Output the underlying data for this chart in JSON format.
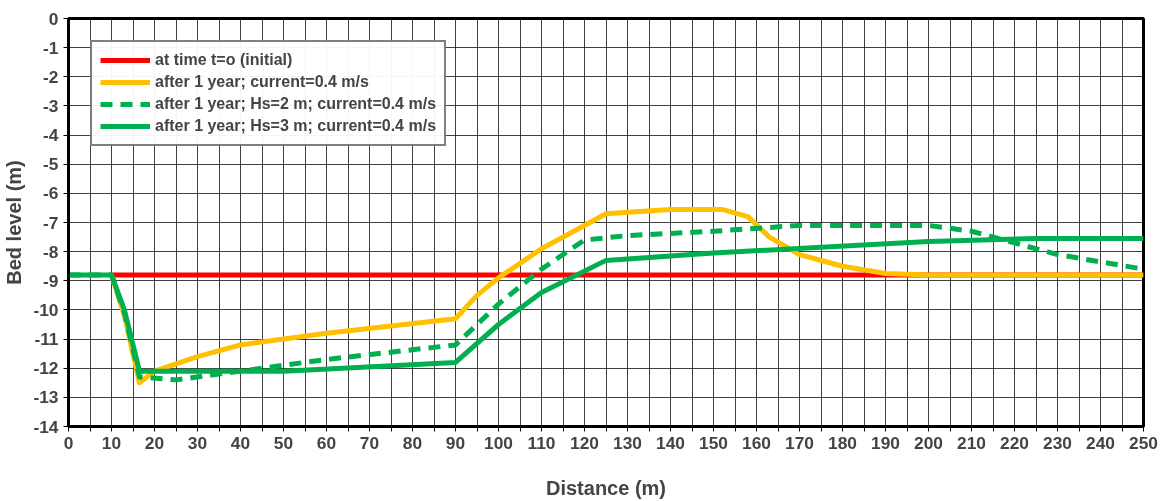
{
  "chart_data": {
    "type": "line",
    "xlabel": "Distance (m)",
    "ylabel": "Bed level (m)",
    "series": [
      {
        "name": "at time t=o (initial)",
        "color": "#ff0000",
        "line_style": "solid",
        "x": [
          10,
          250
        ],
        "values": [
          -8.8,
          -8.8
        ]
      },
      {
        "name": "after 1 year; current=0.4 m/s",
        "color": "#ffc000",
        "line_style": "solid",
        "x": [
          10,
          13,
          16.5,
          20,
          30,
          40,
          60,
          90,
          95,
          100,
          110,
          125,
          140,
          152,
          158,
          163,
          170,
          180,
          190,
          200,
          250
        ],
        "values": [
          -8.8,
          -10.2,
          -12.5,
          -12.1,
          -11.6,
          -11.2,
          -10.8,
          -10.3,
          -9.5,
          -8.9,
          -7.9,
          -6.7,
          -6.55,
          -6.55,
          -6.8,
          -7.5,
          -8.1,
          -8.5,
          -8.75,
          -8.8,
          -8.8
        ]
      },
      {
        "name": "after 1 year; Hs=2 m; current=0.4 m/s",
        "color": "#00b050",
        "line_style": "dashed",
        "x": [
          0,
          10,
          13,
          16.5,
          25,
          40,
          60,
          90,
          100,
          110,
          120,
          130,
          150,
          170,
          200,
          210,
          220,
          230,
          250
        ],
        "values": [
          -8.8,
          -8.8,
          -10.1,
          -12.3,
          -12.4,
          -12.1,
          -11.7,
          -11.2,
          -9.8,
          -8.6,
          -7.6,
          -7.45,
          -7.3,
          -7.1,
          -7.1,
          -7.3,
          -7.7,
          -8.1,
          -8.6
        ]
      },
      {
        "name": "after 1 year; Hs=3 m; current=0.4 m/s",
        "color": "#00b050",
        "line_style": "solid",
        "x": [
          0,
          10,
          13,
          16.5,
          20,
          50,
          90,
          100,
          110,
          125,
          150,
          175,
          200,
          225,
          250
        ],
        "values": [
          -8.8,
          -8.8,
          -10.0,
          -12.1,
          -12.1,
          -12.1,
          -11.8,
          -10.5,
          -9.4,
          -8.3,
          -8.05,
          -7.85,
          -7.65,
          -7.55,
          -7.55
        ]
      }
    ],
    "xlim": [
      0,
      250
    ],
    "ylim": [
      -14,
      0
    ],
    "xticks": [
      0,
      {
        "value": 5,
        "label": null
      },
      10,
      {
        "value": 15,
        "label": null
      },
      20,
      {
        "value": 25,
        "label": null
      },
      30,
      {
        "value": 35,
        "label": null
      },
      40,
      {
        "value": 45,
        "label": null
      },
      50,
      {
        "value": 55,
        "label": null
      },
      60,
      {
        "value": 65,
        "label": null
      },
      70,
      {
        "value": 75,
        "label": null
      },
      80,
      {
        "value": 85,
        "label": null
      },
      90,
      {
        "value": 95,
        "label": null
      },
      100,
      {
        "value": 105,
        "label": null
      },
      110,
      {
        "value": 115,
        "label": null
      },
      120,
      {
        "value": 125,
        "label": null
      },
      130,
      {
        "value": 135,
        "label": null
      },
      140,
      {
        "value": 145,
        "label": null
      },
      150,
      {
        "value": 155,
        "label": null
      },
      160,
      {
        "value": 165,
        "label": null
      },
      170,
      {
        "value": 175,
        "label": null
      },
      180,
      {
        "value": 185,
        "label": null
      },
      190,
      {
        "value": 195,
        "label": null
      },
      200,
      {
        "value": 205,
        "label": null
      },
      210,
      {
        "value": 215,
        "label": null
      },
      220,
      {
        "value": 225,
        "label": null
      },
      230,
      {
        "value": 235,
        "label": null
      },
      240,
      {
        "value": 245,
        "label": null
      },
      250
    ],
    "yticks": [
      0,
      -1,
      -2,
      -3,
      -4,
      -5,
      -6,
      -7,
      -8,
      -9,
      -10,
      -11,
      -12,
      -13,
      -14
    ],
    "grid": true,
    "legend": "top left",
    "marker": "none"
  }
}
